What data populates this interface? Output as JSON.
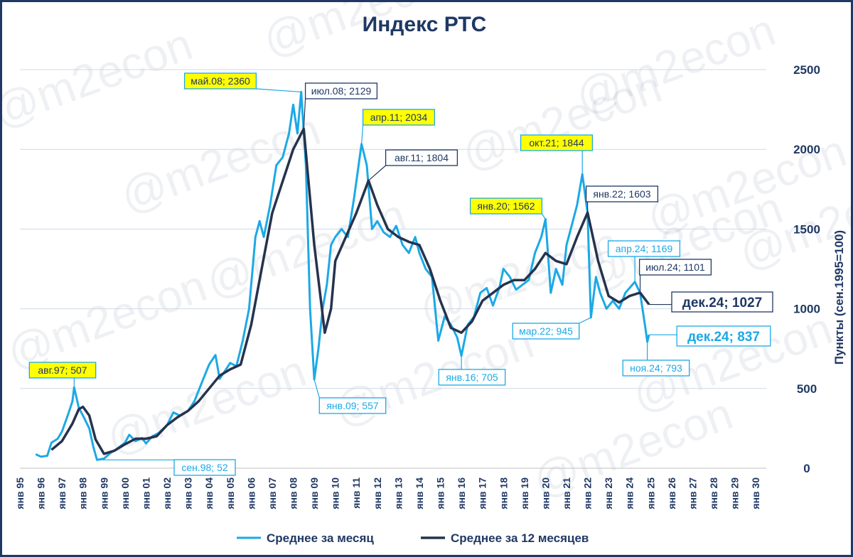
{
  "title": "Индекс РТС",
  "watermark": "@m2econ",
  "colors": {
    "monthly": "#1ba9e6",
    "avg12": "#26334d",
    "highlight": "#ffff00",
    "dark": "#1f3864",
    "grid": "#cfd9e6"
  },
  "chart_data": {
    "type": "line",
    "title": "Индекс РТС",
    "ylabel": "Пункты (сен.1995=100)",
    "xlabel": "",
    "ylim": [
      0,
      2500
    ],
    "yticks": [
      0,
      500,
      1000,
      1500,
      2000,
      2500
    ],
    "grid": true,
    "legend_position": "bottom",
    "x_categories": [
      "янв 95",
      "янв 96",
      "янв 97",
      "янв 98",
      "янв 99",
      "янв 00",
      "янв 01",
      "янв 02",
      "янв 03",
      "янв 04",
      "янв 05",
      "янв 06",
      "янв 07",
      "янв 08",
      "янв 09",
      "янв 10",
      "янв 11",
      "янв 12",
      "янв 13",
      "янв 14",
      "янв 15",
      "янв 16",
      "янв 17",
      "янв 18",
      "янв 19",
      "янв 20",
      "янв 21",
      "янв 22",
      "янв 23",
      "янв 24",
      "янв 25",
      "янв 26",
      "янв 27",
      "янв 28",
      "янв 29",
      "янв 30"
    ],
    "series": [
      {
        "name": "Среднее за месяц",
        "color": "#1ba9e6",
        "points": [
          [
            1995.75,
            88
          ],
          [
            1996.0,
            72
          ],
          [
            1996.3,
            78
          ],
          [
            1996.5,
            160
          ],
          [
            1996.8,
            185
          ],
          [
            1997.0,
            230
          ],
          [
            1997.3,
            340
          ],
          [
            1997.5,
            420
          ],
          [
            1997.58,
            507
          ],
          [
            1997.8,
            380
          ],
          [
            1998.0,
            330
          ],
          [
            1998.3,
            250
          ],
          [
            1998.5,
            130
          ],
          [
            1998.67,
            52
          ],
          [
            1999.0,
            60
          ],
          [
            1999.3,
            95
          ],
          [
            1999.6,
            120
          ],
          [
            2000.0,
            160
          ],
          [
            2000.2,
            210
          ],
          [
            2000.5,
            170
          ],
          [
            2000.8,
            190
          ],
          [
            2001.0,
            155
          ],
          [
            2001.3,
            200
          ],
          [
            2001.6,
            220
          ],
          [
            2002.0,
            270
          ],
          [
            2002.3,
            350
          ],
          [
            2002.6,
            330
          ],
          [
            2003.0,
            360
          ],
          [
            2003.3,
            420
          ],
          [
            2003.6,
            520
          ],
          [
            2004.0,
            650
          ],
          [
            2004.3,
            710
          ],
          [
            2004.5,
            560
          ],
          [
            2004.8,
            620
          ],
          [
            2005.0,
            660
          ],
          [
            2005.3,
            640
          ],
          [
            2005.6,
            800
          ],
          [
            2005.9,
            1000
          ],
          [
            2006.2,
            1450
          ],
          [
            2006.4,
            1550
          ],
          [
            2006.6,
            1450
          ],
          [
            2006.9,
            1650
          ],
          [
            2007.2,
            1900
          ],
          [
            2007.5,
            1950
          ],
          [
            2007.8,
            2100
          ],
          [
            2008.0,
            2280
          ],
          [
            2008.2,
            2100
          ],
          [
            2008.38,
            2360
          ],
          [
            2008.6,
            1900
          ],
          [
            2008.8,
            1000
          ],
          [
            2009.0,
            557
          ],
          [
            2009.2,
            750
          ],
          [
            2009.4,
            1000
          ],
          [
            2009.6,
            1150
          ],
          [
            2009.8,
            1400
          ],
          [
            2010.0,
            1450
          ],
          [
            2010.3,
            1500
          ],
          [
            2010.6,
            1450
          ],
          [
            2010.9,
            1700
          ],
          [
            2011.25,
            2034
          ],
          [
            2011.5,
            1900
          ],
          [
            2011.75,
            1500
          ],
          [
            2012.0,
            1550
          ],
          [
            2012.3,
            1480
          ],
          [
            2012.6,
            1450
          ],
          [
            2012.9,
            1520
          ],
          [
            2013.2,
            1400
          ],
          [
            2013.5,
            1350
          ],
          [
            2013.8,
            1450
          ],
          [
            2014.0,
            1350
          ],
          [
            2014.3,
            1250
          ],
          [
            2014.6,
            1200
          ],
          [
            2014.9,
            800
          ],
          [
            2015.2,
            950
          ],
          [
            2015.5,
            900
          ],
          [
            2015.8,
            820
          ],
          [
            2016.0,
            705
          ],
          [
            2016.3,
            900
          ],
          [
            2016.6,
            950
          ],
          [
            2016.9,
            1100
          ],
          [
            2017.2,
            1130
          ],
          [
            2017.5,
            1020
          ],
          [
            2017.8,
            1130
          ],
          [
            2018.0,
            1250
          ],
          [
            2018.3,
            1200
          ],
          [
            2018.6,
            1120
          ],
          [
            2018.9,
            1150
          ],
          [
            2019.2,
            1180
          ],
          [
            2019.5,
            1350
          ],
          [
            2019.8,
            1450
          ],
          [
            2020.0,
            1562
          ],
          [
            2020.25,
            1100
          ],
          [
            2020.5,
            1250
          ],
          [
            2020.8,
            1150
          ],
          [
            2021.0,
            1400
          ],
          [
            2021.3,
            1550
          ],
          [
            2021.5,
            1650
          ],
          [
            2021.75,
            1844
          ],
          [
            2021.9,
            1700
          ],
          [
            2022.0,
            1600
          ],
          [
            2022.16,
            945
          ],
          [
            2022.4,
            1200
          ],
          [
            2022.6,
            1100
          ],
          [
            2022.9,
            1000
          ],
          [
            2023.2,
            1050
          ],
          [
            2023.5,
            1000
          ],
          [
            2023.8,
            1100
          ],
          [
            2024.0,
            1130
          ],
          [
            2024.25,
            1169
          ],
          [
            2024.5,
            1100
          ],
          [
            2024.75,
            880
          ],
          [
            2024.84,
            793
          ],
          [
            2024.92,
            837
          ]
        ]
      },
      {
        "name": "Среднее за 12 месяцев",
        "color": "#26334d",
        "points": [
          [
            1996.5,
            115
          ],
          [
            1997.0,
            170
          ],
          [
            1997.5,
            280
          ],
          [
            1997.8,
            370
          ],
          [
            1998.0,
            385
          ],
          [
            1998.3,
            330
          ],
          [
            1998.6,
            180
          ],
          [
            1999.0,
            90
          ],
          [
            1999.5,
            110
          ],
          [
            2000.0,
            150
          ],
          [
            2000.5,
            185
          ],
          [
            2001.0,
            185
          ],
          [
            2001.5,
            200
          ],
          [
            2002.0,
            270
          ],
          [
            2002.5,
            320
          ],
          [
            2003.0,
            360
          ],
          [
            2003.5,
            420
          ],
          [
            2004.0,
            500
          ],
          [
            2004.5,
            580
          ],
          [
            2005.0,
            620
          ],
          [
            2005.5,
            650
          ],
          [
            2006.0,
            900
          ],
          [
            2006.5,
            1250
          ],
          [
            2007.0,
            1600
          ],
          [
            2007.5,
            1800
          ],
          [
            2008.0,
            2000
          ],
          [
            2008.5,
            2129
          ],
          [
            2009.0,
            1400
          ],
          [
            2009.5,
            850
          ],
          [
            2009.8,
            1000
          ],
          [
            2010.0,
            1300
          ],
          [
            2010.5,
            1450
          ],
          [
            2011.0,
            1600
          ],
          [
            2011.58,
            1804
          ],
          [
            2012.0,
            1650
          ],
          [
            2012.5,
            1500
          ],
          [
            2013.0,
            1450
          ],
          [
            2013.5,
            1420
          ],
          [
            2014.0,
            1400
          ],
          [
            2014.5,
            1250
          ],
          [
            2015.0,
            1050
          ],
          [
            2015.5,
            880
          ],
          [
            2016.0,
            850
          ],
          [
            2016.5,
            920
          ],
          [
            2017.0,
            1050
          ],
          [
            2017.5,
            1100
          ],
          [
            2018.0,
            1150
          ],
          [
            2018.5,
            1180
          ],
          [
            2019.0,
            1180
          ],
          [
            2019.5,
            1250
          ],
          [
            2020.0,
            1350
          ],
          [
            2020.5,
            1300
          ],
          [
            2021.0,
            1280
          ],
          [
            2021.5,
            1450
          ],
          [
            2022.0,
            1603
          ],
          [
            2022.5,
            1300
          ],
          [
            2023.0,
            1080
          ],
          [
            2023.5,
            1040
          ],
          [
            2024.0,
            1080
          ],
          [
            2024.5,
            1101
          ],
          [
            2024.92,
            1027
          ]
        ]
      }
    ],
    "annotations": [
      {
        "text": "авг.97; 507",
        "x": 1997.58,
        "y": 507,
        "style": "highlight",
        "series": 0
      },
      {
        "text": "сен.98; 52",
        "x": 1998.67,
        "y": 52,
        "style": "outline-light",
        "series": 0
      },
      {
        "text": "май.08; 2360",
        "x": 2008.38,
        "y": 2360,
        "style": "highlight",
        "series": 0
      },
      {
        "text": "июл.08; 2129",
        "x": 2008.5,
        "y": 2129,
        "style": "outline-dark",
        "series": 1
      },
      {
        "text": "янв.09; 557",
        "x": 2009.0,
        "y": 557,
        "style": "outline-light",
        "series": 0
      },
      {
        "text": "апр.11; 2034",
        "x": 2011.25,
        "y": 2034,
        "style": "highlight",
        "series": 0
      },
      {
        "text": "авг.11; 1804",
        "x": 2011.58,
        "y": 1804,
        "style": "outline-dark",
        "series": 1
      },
      {
        "text": "янв.16; 705",
        "x": 2016.0,
        "y": 705,
        "style": "outline-light",
        "series": 0
      },
      {
        "text": "янв.20; 1562",
        "x": 2020.0,
        "y": 1562,
        "style": "highlight",
        "series": 0
      },
      {
        "text": "окт.21; 1844",
        "x": 2021.75,
        "y": 1844,
        "style": "highlight",
        "series": 0
      },
      {
        "text": "янв.22; 1603",
        "x": 2022.0,
        "y": 1603,
        "style": "outline-dark",
        "series": 1
      },
      {
        "text": "мар.22; 945",
        "x": 2022.16,
        "y": 945,
        "style": "outline-light",
        "series": 0
      },
      {
        "text": "апр.24; 1169",
        "x": 2024.25,
        "y": 1169,
        "style": "outline-light",
        "series": 0
      },
      {
        "text": "июл.24; 1101",
        "x": 2024.5,
        "y": 1101,
        "style": "outline-dark",
        "series": 1
      },
      {
        "text": "ноя.24; 793",
        "x": 2024.84,
        "y": 793,
        "style": "outline-light",
        "series": 0
      },
      {
        "text": "дек.24; 1027",
        "x": 2024.92,
        "y": 1027,
        "style": "big-dark",
        "series": 1
      },
      {
        "text": "дек.24; 837",
        "x": 2024.92,
        "y": 837,
        "style": "big-light",
        "series": 0
      }
    ]
  }
}
